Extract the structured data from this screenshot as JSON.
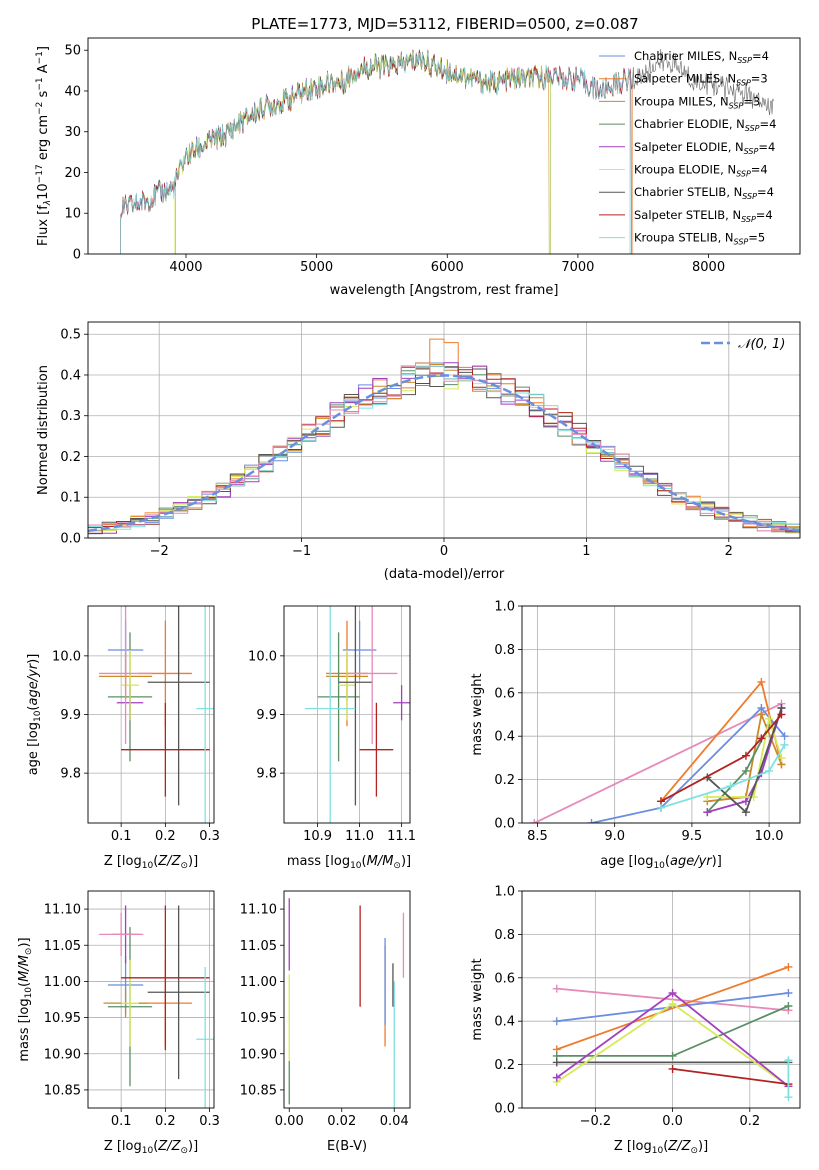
{
  "figure_title": "PLATE=1773, MJD=53112, FIBERID=0500, z=0.087",
  "colors": {
    "chabrier_miles": "#6a8ee0",
    "salpeter_miles": "#ee7b2e",
    "kroupa_miles": "#c98a2a",
    "chabrier_elodie": "#5b8f66",
    "salpeter_elodie": "#a23fbf",
    "kroupa_elodie": "#d6ea5a",
    "chabrier_stelib": "#555555",
    "salpeter_stelib": "#b22222",
    "kroupa_stelib": "#7fe0e0",
    "pink": "#e58ab9",
    "gaussian": "#6a8ee0",
    "grid": "#b0b0b0"
  },
  "chart_data": [
    {
      "id": "spectrum",
      "type": "line",
      "title": "",
      "xlabel": "wavelength [Angstrom, rest frame]",
      "ylabel": "Flux [f",
      "ylabel_parts": [
        "Flux [f",
        "λ",
        "10",
        "−17",
        " erg cm",
        "−2",
        " s",
        "−1",
        " A",
        "−1",
        "]"
      ],
      "xlim": [
        3250,
        8700
      ],
      "ylim": [
        0,
        53
      ],
      "xticks": [
        4000,
        5000,
        6000,
        7000,
        8000
      ],
      "yticks": [
        0,
        10,
        20,
        30,
        40,
        50
      ],
      "grid": false,
      "legend_position": "upper-right",
      "legend": [
        {
          "main": "Chabrier MILES, N",
          "sub": "SSP",
          "tail": "=4",
          "color_key": "chabrier_miles"
        },
        {
          "main": "Salpeter MILES, N",
          "sub": "SSP",
          "tail": "=3",
          "color_key": "salpeter_miles"
        },
        {
          "main": "Kroupa MILES, N",
          "sub": "SSP",
          "tail": "=3",
          "color_key": "kroupa_miles"
        },
        {
          "main": "Chabrier ELODIE, N",
          "sub": "SSP",
          "tail": "=4",
          "color_key": "chabrier_elodie"
        },
        {
          "main": "Salpeter ELODIE, N",
          "sub": "SSP",
          "tail": "=4",
          "color_key": "salpeter_elodie"
        },
        {
          "main": "Kroupa ELODIE, N",
          "sub": "SSP",
          "tail": "=4",
          "color_key": "kroupa_elodie"
        },
        {
          "main": "Chabrier STELIB, N",
          "sub": "SSP",
          "tail": "=4",
          "color_key": "chabrier_stelib"
        },
        {
          "main": "Salpeter STELIB, N",
          "sub": "SSP",
          "tail": "=4",
          "color_key": "salpeter_stelib"
        },
        {
          "main": "Kroupa STELIB, N",
          "sub": "SSP",
          "tail": "=5",
          "color_key": "kroupa_stelib"
        }
      ],
      "continuum": [
        [
          3500,
          11
        ],
        [
          3600,
          12
        ],
        [
          3700,
          13
        ],
        [
          3800,
          15
        ],
        [
          3900,
          16
        ],
        [
          4000,
          24
        ],
        [
          4100,
          26
        ],
        [
          4200,
          28
        ],
        [
          4300,
          29
        ],
        [
          4400,
          32
        ],
        [
          4500,
          34
        ],
        [
          4600,
          36
        ],
        [
          4700,
          37
        ],
        [
          4800,
          38
        ],
        [
          4900,
          40
        ],
        [
          5000,
          41
        ],
        [
          5100,
          42
        ],
        [
          5200,
          42
        ],
        [
          5300,
          45
        ],
        [
          5400,
          46
        ],
        [
          5500,
          46
        ],
        [
          5600,
          46
        ],
        [
          5700,
          47
        ],
        [
          5800,
          48
        ],
        [
          5900,
          46
        ],
        [
          6000,
          45
        ],
        [
          6100,
          44
        ],
        [
          6200,
          43
        ],
        [
          6300,
          42
        ],
        [
          6400,
          42
        ],
        [
          6500,
          43
        ],
        [
          6600,
          43
        ],
        [
          6700,
          43
        ],
        [
          6800,
          44
        ],
        [
          6900,
          43
        ],
        [
          7000,
          43
        ],
        [
          7100,
          41
        ],
        [
          7200,
          40
        ],
        [
          7300,
          42
        ],
        [
          7400,
          43
        ],
        [
          7500,
          44
        ],
        [
          7600,
          47
        ],
        [
          7700,
          47
        ],
        [
          7800,
          45
        ],
        [
          7900,
          42
        ],
        [
          8000,
          42
        ],
        [
          8100,
          41
        ],
        [
          8200,
          40
        ],
        [
          8300,
          39
        ],
        [
          8400,
          37
        ],
        [
          8500,
          36
        ]
      ],
      "spectrum_ends": [
        {
          "color_key": "chabrier_miles",
          "xmin": 3500,
          "xmax": 7400
        },
        {
          "color_key": "salpeter_miles",
          "xmin": 3500,
          "xmax": 7420
        },
        {
          "color_key": "kroupa_miles",
          "xmin": 3920,
          "xmax": 6780
        },
        {
          "color_key": "chabrier_elodie",
          "xmin": 3500,
          "xmax": 6790
        },
        {
          "color_key": "salpeter_elodie",
          "xmin": 3500,
          "xmax": 7400
        },
        {
          "color_key": "kroupa_elodie",
          "xmin": 3910,
          "xmax": 6790
        },
        {
          "color_key": "chabrier_stelib",
          "xmin": 3500,
          "xmax": 8500
        },
        {
          "color_key": "salpeter_stelib",
          "xmin": 3500,
          "xmax": 7410
        },
        {
          "color_key": "kroupa_stelib",
          "xmin": 3500,
          "xmax": 7400
        }
      ]
    },
    {
      "id": "residuals",
      "type": "histogram",
      "title": "",
      "xlabel": "(data-model)/error",
      "ylabel": "Normed distribution",
      "xlim": [
        -2.5,
        2.5
      ],
      "ylim": [
        0,
        0.53
      ],
      "xticks": [
        -2,
        -1,
        0,
        1,
        2
      ],
      "xtick_labels": [
        "−2",
        "−1",
        "0",
        "1",
        "2"
      ],
      "yticks": [
        0.0,
        0.1,
        0.2,
        0.3,
        0.4,
        0.5
      ],
      "grid": true,
      "legend_position": "upper-right",
      "legend": [
        {
          "label_prefix": "𝒩(0, 1)",
          "color_key": "gaussian",
          "dashed": true
        }
      ],
      "bin_width": 0.1,
      "gaussian": {
        "mean": 0,
        "sigma": 1
      }
    },
    {
      "id": "age_vs_Z",
      "type": "errorbar",
      "title": "",
      "xlabel": "Z [log",
      "ylabel": "age  [log",
      "xlim": [
        0.025,
        0.31
      ],
      "ylim": [
        9.715,
        10.085
      ],
      "xticks": [
        0.1,
        0.2,
        0.3
      ],
      "yticks": [
        9.8,
        9.9,
        10.0
      ],
      "grid": true,
      "points": [
        {
          "color_key": "chabrier_miles",
          "x": 0.11,
          "xerr": 0.04,
          "y": 10.01,
          "yerr": 0.05
        },
        {
          "color_key": "salpeter_miles",
          "x": 0.2,
          "xerr": 0.06,
          "y": 9.97,
          "yerr": 0.09
        },
        {
          "color_key": "kroupa_miles",
          "x": 0.11,
          "xerr": 0.06,
          "y": 9.965,
          "yerr": 0.04
        },
        {
          "color_key": "chabrier_elodie",
          "x": 0.12,
          "xerr": 0.05,
          "y": 9.93,
          "yerr": 0.11
        },
        {
          "color_key": "salpeter_elodie",
          "x": 0.12,
          "xerr": 0.03,
          "y": 9.92,
          "yerr": 0.03
        },
        {
          "color_key": "kroupa_elodie",
          "x": 0.12,
          "xerr": 0.02,
          "y": 9.95,
          "yerr": 0.06
        },
        {
          "color_key": "chabrier_stelib",
          "x": 0.23,
          "xerr": 0.07,
          "y": 9.955,
          "yerr": 0.21
        },
        {
          "color_key": "salpeter_stelib",
          "x": 0.2,
          "xerr": 0.1,
          "y": 9.84,
          "yerr": 0.08
        },
        {
          "color_key": "kroupa_stelib",
          "x": 0.29,
          "xerr": 0.02,
          "y": 9.91,
          "yerr": 0.2
        },
        {
          "color_key": "pink",
          "x": 0.11,
          "xerr": 0.06,
          "y": 9.97,
          "yerr": 0.12
        }
      ]
    },
    {
      "id": "age_vs_mass",
      "type": "errorbar",
      "title": "",
      "xlabel": "mass [log",
      "ylabel": "",
      "xlim": [
        10.82,
        11.12
      ],
      "ylim": [
        9.715,
        10.085
      ],
      "xticks": [
        10.9,
        11.0,
        11.1
      ],
      "yticks": [
        9.8,
        9.9,
        10.0
      ],
      "grid": true,
      "points": [
        {
          "color_key": "chabrier_miles",
          "x": 11.0,
          "xerr": 0.04,
          "y": 10.01,
          "yerr": 0.05
        },
        {
          "color_key": "salpeter_miles",
          "x": 10.97,
          "xerr": 0.05,
          "y": 9.97,
          "yerr": 0.09
        },
        {
          "color_key": "kroupa_miles",
          "x": 10.97,
          "xerr": 0.05,
          "y": 9.965,
          "yerr": 0.04
        },
        {
          "color_key": "chabrier_elodie",
          "x": 10.95,
          "xerr": 0.05,
          "y": 9.93,
          "yerr": 0.11
        },
        {
          "color_key": "salpeter_elodie",
          "x": 11.1,
          "xerr": 0.02,
          "y": 9.92,
          "yerr": 0.03
        },
        {
          "color_key": "kroupa_elodie",
          "x": 10.97,
          "xerr": 0.02,
          "y": 9.95,
          "yerr": 0.06
        },
        {
          "color_key": "chabrier_stelib",
          "x": 10.99,
          "xerr": 0.04,
          "y": 9.955,
          "yerr": 0.21
        },
        {
          "color_key": "salpeter_stelib",
          "x": 11.04,
          "xerr": 0.04,
          "y": 9.84,
          "yerr": 0.08
        },
        {
          "color_key": "kroupa_stelib",
          "x": 10.93,
          "xerr": 0.06,
          "y": 9.91,
          "yerr": 0.2
        },
        {
          "color_key": "pink",
          "x": 11.03,
          "xerr": 0.06,
          "y": 9.97,
          "yerr": 0.12
        }
      ]
    },
    {
      "id": "weight_vs_age",
      "type": "line",
      "title": "",
      "xlabel": "age  [log",
      "ylabel": "mass weight",
      "xlim": [
        8.4,
        10.2
      ],
      "ylim": [
        0,
        1.0
      ],
      "xticks": [
        8.5,
        9.0,
        9.5,
        10.0
      ],
      "yticks": [
        0.0,
        0.2,
        0.4,
        0.6,
        0.8,
        1.0
      ],
      "grid": true,
      "marker": "+",
      "series": [
        {
          "color_key": "pink",
          "x": [
            8.48,
            10.08
          ],
          "y": [
            0.0,
            0.55
          ]
        },
        {
          "color_key": "chabrier_miles",
          "x": [
            8.85,
            9.3,
            9.95,
            10.1
          ],
          "y": [
            0.0,
            0.07,
            0.53,
            0.4
          ]
        },
        {
          "color_key": "salpeter_miles",
          "x": [
            9.3,
            9.95,
            10.08
          ],
          "y": [
            0.1,
            0.65,
            0.27
          ]
        },
        {
          "color_key": "kroupa_miles",
          "x": [
            9.6,
            9.85,
            9.95,
            10.08
          ],
          "y": [
            0.1,
            0.12,
            0.5,
            0.27
          ]
        },
        {
          "color_key": "chabrier_elodie",
          "x": [
            9.6,
            9.85,
            10.0
          ],
          "y": [
            0.05,
            0.24,
            0.45
          ]
        },
        {
          "color_key": "salpeter_elodie",
          "x": [
            9.6,
            9.85,
            9.95,
            10.08
          ],
          "y": [
            0.05,
            0.1,
            0.23,
            0.53
          ]
        },
        {
          "color_key": "kroupa_elodie",
          "x": [
            9.6,
            9.9,
            10.0,
            10.08
          ],
          "y": [
            0.12,
            0.12,
            0.48,
            0.3
          ]
        },
        {
          "color_key": "chabrier_stelib",
          "x": [
            9.6,
            9.85,
            10.08
          ],
          "y": [
            0.21,
            0.05,
            0.53
          ]
        },
        {
          "color_key": "salpeter_stelib",
          "x": [
            9.3,
            9.85,
            9.95,
            10.08
          ],
          "y": [
            0.1,
            0.31,
            0.39,
            0.5
          ]
        },
        {
          "color_key": "kroupa_stelib",
          "x": [
            9.3,
            9.75,
            10.0,
            10.1
          ],
          "y": [
            0.07,
            0.17,
            0.24,
            0.36
          ]
        }
      ]
    },
    {
      "id": "mass_vs_Z",
      "type": "errorbar",
      "title": "",
      "xlabel": "Z [log",
      "ylabel": "mass [log",
      "xlim": [
        0.025,
        0.31
      ],
      "ylim": [
        10.825,
        11.125
      ],
      "xticks": [
        0.1,
        0.2,
        0.3
      ],
      "yticks": [
        10.85,
        10.9,
        10.95,
        11.0,
        11.05,
        11.1
      ],
      "grid": true,
      "points": [
        {
          "color_key": "chabrier_miles",
          "x": 0.11,
          "xerr": 0.04,
          "y": 10.995,
          "yerr": 0.04
        },
        {
          "color_key": "salpeter_miles",
          "x": 0.2,
          "xerr": 0.06,
          "y": 10.97,
          "yerr": 0.06
        },
        {
          "color_key": "kroupa_miles",
          "x": 0.11,
          "xerr": 0.05,
          "y": 10.97,
          "yerr": 0.02
        },
        {
          "color_key": "chabrier_elodie",
          "x": 0.12,
          "xerr": 0.05,
          "y": 10.965,
          "yerr": 0.11
        },
        {
          "color_key": "salpeter_elodie",
          "x": 0.11,
          "xerr": 0.03,
          "y": 11.065,
          "yerr": 0.04
        },
        {
          "color_key": "kroupa_elodie",
          "x": 0.12,
          "xerr": 0.02,
          "y": 10.97,
          "yerr": 0.06
        },
        {
          "color_key": "chabrier_stelib",
          "x": 0.23,
          "xerr": 0.07,
          "y": 10.985,
          "yerr": 0.12
        },
        {
          "color_key": "salpeter_stelib",
          "x": 0.2,
          "xerr": 0.1,
          "y": 11.005,
          "yerr": 0.1
        },
        {
          "color_key": "kroupa_stelib",
          "x": 0.29,
          "xerr": 0.02,
          "y": 10.92,
          "yerr": 0.1
        },
        {
          "color_key": "pink",
          "x": 0.1,
          "xerr": 0.05,
          "y": 11.065,
          "yerr": 0.03
        }
      ]
    },
    {
      "id": "mass_vs_ebv",
      "type": "errorbar",
      "title": "",
      "xlabel": "E(B-V)",
      "ylabel": "",
      "xlim": [
        -0.002,
        0.046
      ],
      "ylim": [
        10.825,
        11.125
      ],
      "xticks": [
        0.0,
        0.02,
        0.04
      ],
      "xtick_labels": [
        "0.00",
        "0.02",
        "0.04"
      ],
      "yticks": [
        10.85,
        10.9,
        10.95,
        11.0,
        11.05,
        11.1
      ],
      "grid": false,
      "points": [
        {
          "color_key": "salpeter_elodie",
          "x": 0.0,
          "y": 11.065,
          "yerr": 0.05
        },
        {
          "color_key": "kroupa_elodie",
          "x": 0.0,
          "y": 10.95,
          "yerr": 0.06
        },
        {
          "color_key": "chabrier_elodie",
          "x": 0.0,
          "y": 10.86,
          "yerr": 0.03
        },
        {
          "color_key": "salpeter_stelib",
          "x": 0.027,
          "y": 11.035,
          "yerr": 0.07
        },
        {
          "color_key": "salpeter_miles",
          "x": 0.0365,
          "y": 10.98,
          "yerr": 0.07
        },
        {
          "color_key": "chabrier_miles",
          "x": 0.0365,
          "y": 11.0,
          "yerr": 0.06
        },
        {
          "color_key": "chabrier_stelib",
          "x": 0.0395,
          "y": 10.995,
          "yerr": 0.03
        },
        {
          "color_key": "kroupa_stelib",
          "x": 0.04,
          "y": 10.9,
          "yerr": 0.1
        },
        {
          "color_key": "pink",
          "x": 0.0435,
          "y": 11.05,
          "yerr": 0.045
        }
      ]
    },
    {
      "id": "weight_vs_Z",
      "type": "line",
      "title": "",
      "xlabel": "Z [log",
      "ylabel": "mass weight",
      "xlim": [
        -0.39,
        0.33
      ],
      "ylim": [
        0,
        1.0
      ],
      "xticks": [
        -0.2,
        0.0,
        0.2
      ],
      "xtick_labels": [
        "−0.2",
        "0.0",
        "0.2"
      ],
      "yticks": [
        0.0,
        0.2,
        0.4,
        0.6,
        0.8,
        1.0
      ],
      "grid": true,
      "marker": "+",
      "series": [
        {
          "color_key": "pink",
          "x": [
            -0.3,
            0.3
          ],
          "y": [
            0.55,
            0.45
          ]
        },
        {
          "color_key": "chabrier_miles",
          "x": [
            -0.3,
            0.3
          ],
          "y": [
            0.4,
            0.53
          ]
        },
        {
          "color_key": "salpeter_miles",
          "x": [
            -0.3,
            0.3
          ],
          "y": [
            0.27,
            0.65
          ]
        },
        {
          "color_key": "chabrier_elodie",
          "x": [
            -0.3,
            0.0,
            0.3
          ],
          "y": [
            0.24,
            0.24,
            0.47
          ]
        },
        {
          "color_key": "chabrier_stelib",
          "x": [
            -0.3,
            0.3
          ],
          "y": [
            0.21,
            0.21
          ]
        },
        {
          "color_key": "kroupa_elodie",
          "x": [
            -0.3,
            0.0,
            0.3
          ],
          "y": [
            0.12,
            0.48,
            0.1
          ]
        },
        {
          "color_key": "salpeter_elodie",
          "x": [
            -0.3,
            0.0,
            0.3
          ],
          "y": [
            0.14,
            0.53,
            0.1
          ]
        },
        {
          "color_key": "salpeter_stelib",
          "x": [
            0.0,
            0.3
          ],
          "y": [
            0.18,
            0.11
          ]
        },
        {
          "color_key": "kroupa_stelib",
          "x": [
            0.3,
            0.3
          ],
          "y": [
            0.05,
            0.22
          ]
        }
      ]
    }
  ]
}
